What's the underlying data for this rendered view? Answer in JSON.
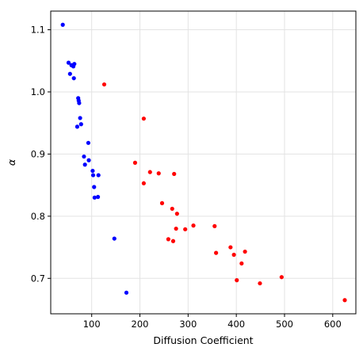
{
  "chart_data": {
    "type": "scatter",
    "xlabel": "Diffusion Coefficient",
    "ylabel": "α",
    "xlim": [
      15,
      648
    ],
    "ylim": [
      0.643,
      1.13
    ],
    "xticks": [
      100,
      200,
      300,
      400,
      500,
      600
    ],
    "yticks": [
      0.7,
      0.8,
      0.9,
      1.0,
      1.1
    ],
    "ytick_labels": [
      "0.7",
      "0.8",
      "0.9",
      "1.0",
      "1.1"
    ],
    "grid": true,
    "series": [
      {
        "color": "#0000ff",
        "points": [
          [
            40,
            1.108
          ],
          [
            52,
            1.047
          ],
          [
            55,
            1.029
          ],
          [
            58,
            1.043
          ],
          [
            62,
            1.041
          ],
          [
            63,
            1.022
          ],
          [
            64,
            1.045
          ],
          [
            70,
            0.944
          ],
          [
            72,
            0.99
          ],
          [
            73,
            0.986
          ],
          [
            74,
            0.982
          ],
          [
            76,
            0.958
          ],
          [
            78,
            0.948
          ],
          [
            84,
            0.896
          ],
          [
            86,
            0.883
          ],
          [
            93,
            0.918
          ],
          [
            94,
            0.89
          ],
          [
            102,
            0.873
          ],
          [
            103,
            0.866
          ],
          [
            105,
            0.847
          ],
          [
            106,
            0.83
          ],
          [
            113,
            0.831
          ],
          [
            114,
            0.866
          ],
          [
            147,
            0.764
          ],
          [
            172,
            0.677
          ]
        ]
      },
      {
        "color": "#ff0000",
        "points": [
          [
            126,
            1.012
          ],
          [
            190,
            0.886
          ],
          [
            208,
            0.957
          ],
          [
            208,
            0.853
          ],
          [
            221,
            0.871
          ],
          [
            239,
            0.869
          ],
          [
            246,
            0.821
          ],
          [
            259,
            0.763
          ],
          [
            267,
            0.812
          ],
          [
            269,
            0.76
          ],
          [
            271,
            0.868
          ],
          [
            275,
            0.78
          ],
          [
            277,
            0.804
          ],
          [
            294,
            0.779
          ],
          [
            311,
            0.785
          ],
          [
            355,
            0.784
          ],
          [
            358,
            0.741
          ],
          [
            388,
            0.75
          ],
          [
            395,
            0.738
          ],
          [
            401,
            0.697
          ],
          [
            411,
            0.724
          ],
          [
            418,
            0.743
          ],
          [
            449,
            0.692
          ],
          [
            494,
            0.702
          ],
          [
            625,
            0.665
          ]
        ]
      }
    ]
  }
}
